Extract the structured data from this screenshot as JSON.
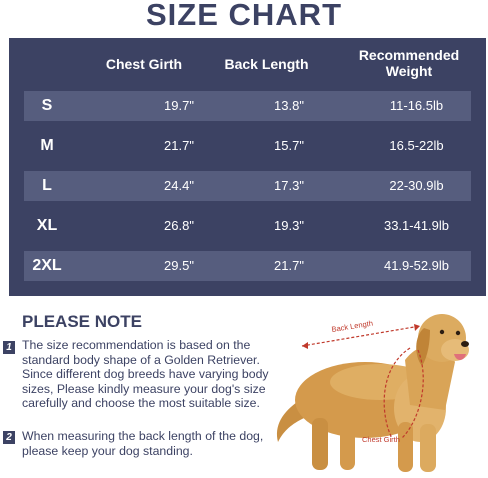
{
  "title": "SIZE CHART",
  "table": {
    "headers": [
      "Chest Girth",
      "Back Length",
      "Recommended Weight"
    ],
    "rows": [
      {
        "size": "S",
        "chest": "19.7\"",
        "back": "13.8\"",
        "weight": "11-16.5lb"
      },
      {
        "size": "M",
        "chest": "21.7\"",
        "back": "15.7\"",
        "weight": "16.5-22lb"
      },
      {
        "size": "L",
        "chest": "24.4\"",
        "back": "17.3\"",
        "weight": "22-30.9lb"
      },
      {
        "size": "XL",
        "chest": "26.8\"",
        "back": "19.3\"",
        "weight": "33.1-41.9lb"
      },
      {
        "size": "2XL",
        "chest": "29.5\"",
        "back": "21.7\"",
        "weight": "41.9-52.9lb"
      }
    ]
  },
  "note": {
    "title": "PLEASE NOTE",
    "items": [
      {
        "num": "1",
        "text": "The size recommendation is based on the standard body shape of a Golden Retriever. Since different dog breeds have varying body sizes, Please kindly measure your dog's size carefully and choose the most suitable size."
      },
      {
        "num": "2",
        "text": "When measuring the back length of the dog, please keep your dog standing."
      }
    ]
  },
  "illustration": {
    "back_label": "Back Length",
    "chest_label": "Chest Girth"
  },
  "colors": {
    "navy": "#3c4263",
    "row_shade": "#565d7e",
    "measure_red": "#c0392b"
  }
}
